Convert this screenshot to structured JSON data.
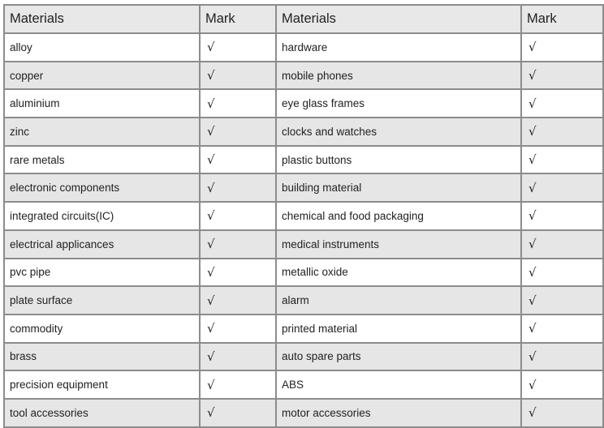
{
  "headers": [
    "Materials",
    "Mark",
    "Materials",
    "Mark"
  ],
  "rows": [
    {
      "left": "alloy",
      "left_mark": "√",
      "right": "hardware",
      "right_mark": "√"
    },
    {
      "left": "copper",
      "left_mark": "√",
      "right": "mobile phones",
      "right_mark": "√"
    },
    {
      "left": "aluminium",
      "left_mark": "√",
      "right": "eye glass frames",
      "right_mark": "√"
    },
    {
      "left": "zinc",
      "left_mark": "√",
      "right": "clocks and watches",
      "right_mark": "√"
    },
    {
      "left": "rare metals",
      "left_mark": "√",
      "right": "plastic buttons",
      "right_mark": "√"
    },
    {
      "left": "electronic components",
      "left_mark": "√",
      "right": "building material",
      "right_mark": "√"
    },
    {
      "left": "integrated circuits(IC)",
      "left_mark": "√",
      "right": "chemical and food packaging",
      "right_mark": "√"
    },
    {
      "left": "electrical applicances",
      "left_mark": "√",
      "right": "medical instruments",
      "right_mark": "√"
    },
    {
      "left": "pvc pipe",
      "left_mark": "√",
      "right": "metallic oxide",
      "right_mark": "√"
    },
    {
      "left": "plate surface",
      "left_mark": "√",
      "right": "alarm",
      "right_mark": "√"
    },
    {
      "left": "commodity",
      "left_mark": "√",
      "right": "printed material",
      "right_mark": "√"
    },
    {
      "left": "brass",
      "left_mark": "√",
      "right": "auto spare parts",
      "right_mark": "√"
    },
    {
      "left": "precision equipment",
      "left_mark": "√",
      "right": "ABS",
      "right_mark": "√"
    },
    {
      "left": "tool accessories",
      "left_mark": "√",
      "right": "motor accessories",
      "right_mark": "√"
    }
  ]
}
